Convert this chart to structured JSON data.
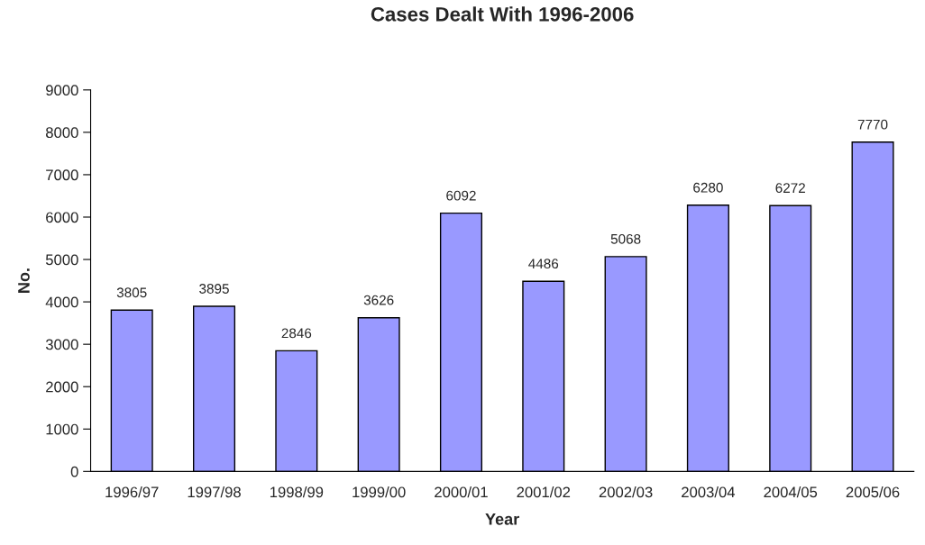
{
  "chart_data": {
    "type": "bar",
    "title": "Cases Dealt With 1996-2006",
    "xlabel": "Year",
    "ylabel": "No.",
    "categories": [
      "1996/97",
      "1997/98",
      "1998/99",
      "1999/00",
      "2000/01",
      "2001/02",
      "2002/03",
      "2003/04",
      "2004/05",
      "2005/06"
    ],
    "values": [
      3805,
      3895,
      2846,
      3626,
      6092,
      4486,
      5068,
      6280,
      6272,
      7770
    ],
    "color": "#9999ff",
    "ylim": [
      0,
      9000
    ],
    "yticks": [
      0,
      1000,
      2000,
      3000,
      4000,
      5000,
      6000,
      7000,
      8000,
      9000
    ],
    "data_labels": true,
    "grid": false,
    "legend": false
  }
}
